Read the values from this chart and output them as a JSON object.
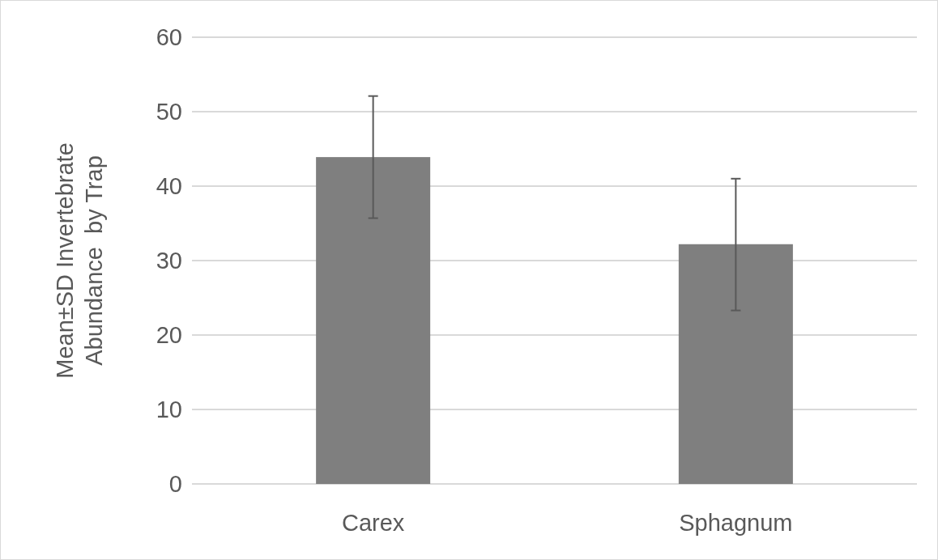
{
  "chart_data": {
    "type": "bar",
    "ylabel": "Mean±SD Invertebrate\nAbundance  by Trap",
    "categories": [
      "Carex",
      "Sphagnum"
    ],
    "values": [
      43.9,
      32.2
    ],
    "errors": [
      [
        35.7,
        52.1
      ],
      [
        23.3,
        41.0
      ]
    ],
    "color": "#7f7f7f",
    "ylim": [
      0,
      60
    ],
    "yticks": [
      0,
      10,
      20,
      30,
      40,
      50,
      60
    ],
    "grid": "y"
  }
}
